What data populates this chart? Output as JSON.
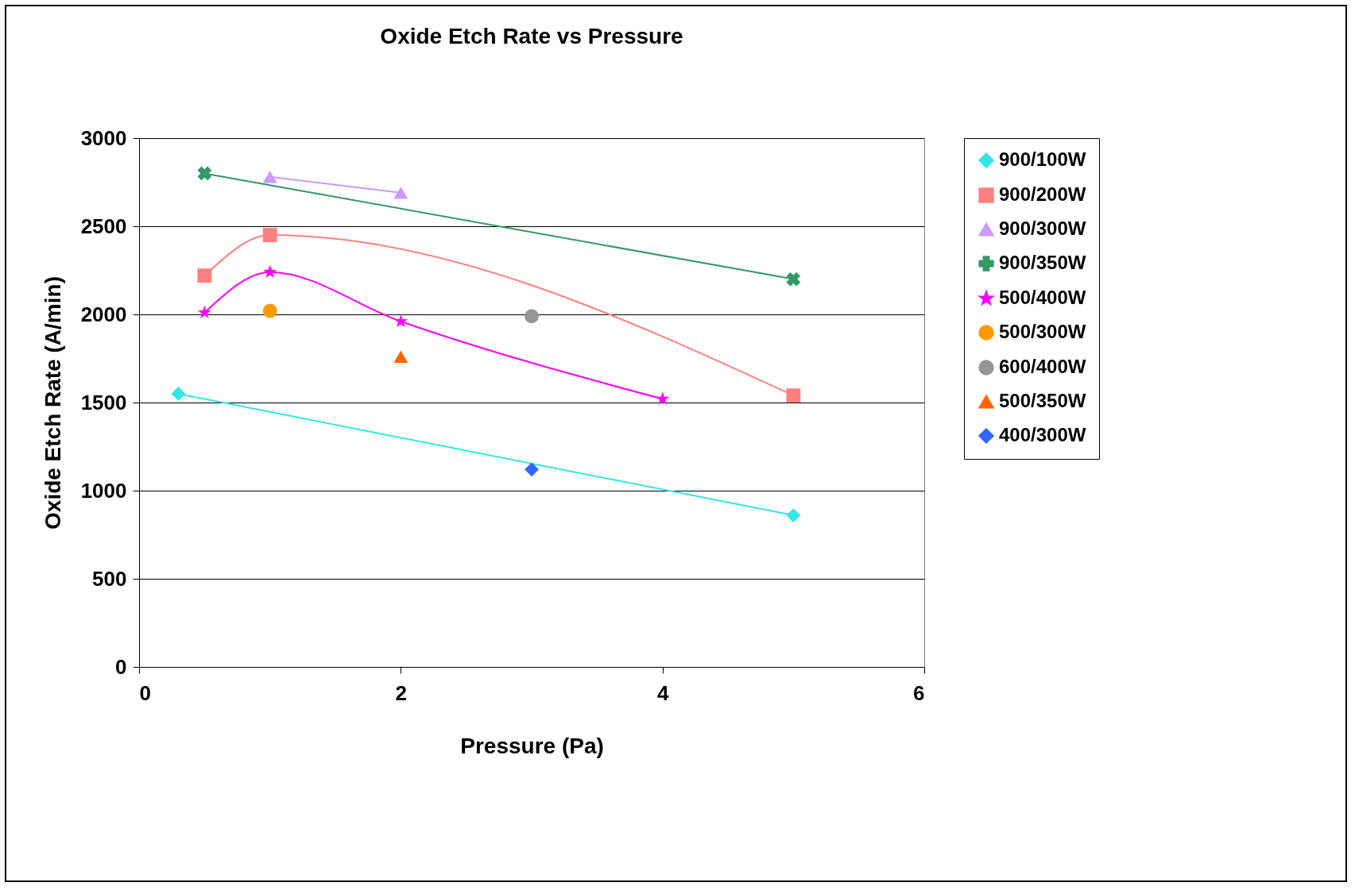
{
  "chart_data": {
    "type": "line",
    "title": "Oxide Etch Rate vs Pressure",
    "xlabel": "Pressure (Pa)",
    "ylabel": "Oxide Etch Rate (A/min)",
    "xlim": [
      0,
      6
    ],
    "xticks": [
      0,
      2,
      4,
      6
    ],
    "ylim": [
      0,
      3000
    ],
    "yticks": [
      0,
      500,
      1000,
      1500,
      2000,
      2500,
      3000
    ],
    "grid": "y",
    "legend": "right",
    "series": [
      {
        "name": "900/100W",
        "color": "#33e6e6",
        "marker": "diamond",
        "x": [
          0.3,
          5
        ],
        "values": [
          1550,
          860
        ]
      },
      {
        "name": "900/200W",
        "color": "#ff8080",
        "marker": "square",
        "x": [
          0.5,
          1,
          5
        ],
        "values": [
          2220,
          2450,
          1540
        ]
      },
      {
        "name": "900/300W",
        "color": "#cc99ff",
        "marker": "triangle",
        "x": [
          1,
          2
        ],
        "values": [
          2780,
          2690
        ]
      },
      {
        "name": "900/350W",
        "color": "#339966",
        "marker": "cross",
        "x": [
          0.5,
          5
        ],
        "values": [
          2800,
          2200
        ]
      },
      {
        "name": "500/400W",
        "color": "#ff00ff",
        "marker": "star",
        "x": [
          0.5,
          1,
          2,
          4
        ],
        "values": [
          2010,
          2240,
          1960,
          1520
        ]
      },
      {
        "name": "500/300W",
        "color": "#ff9900",
        "marker": "circle",
        "x": [
          1
        ],
        "values": [
          2020
        ]
      },
      {
        "name": "600/400W",
        "color": "#969696",
        "marker": "circle",
        "x": [
          3
        ],
        "values": [
          1990
        ]
      },
      {
        "name": "500/350W",
        "color": "#ff6600",
        "marker": "triangle",
        "x": [
          2
        ],
        "values": [
          1760
        ]
      },
      {
        "name": "400/300W",
        "color": "#3366ff",
        "marker": "diamond",
        "x": [
          3
        ],
        "values": [
          1120
        ]
      }
    ]
  }
}
